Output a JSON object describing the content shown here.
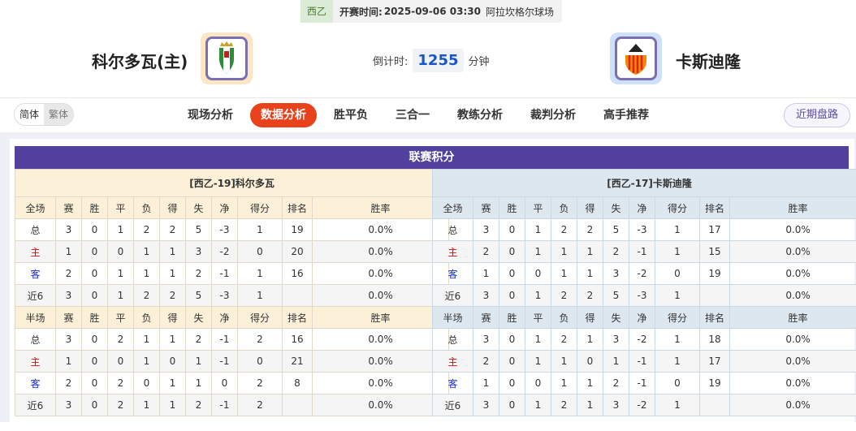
{
  "match": {
    "league": "西乙",
    "time_label": "开赛时间:",
    "time": "2025-09-06 03:30",
    "venue": "阿拉坎格尔球场"
  },
  "home": {
    "name": "科尔多瓦(主)"
  },
  "away": {
    "name": "卡斯迪隆"
  },
  "countdown": {
    "label": "倒计时:",
    "value": "1255",
    "unit": "分钟"
  },
  "lang": {
    "simplified": "简体",
    "traditional": "繁体"
  },
  "tabs": [
    {
      "label": "现场分析"
    },
    {
      "label": "数据分析",
      "active": true
    },
    {
      "label": "胜平负"
    },
    {
      "label": "三合一"
    },
    {
      "label": "教练分析"
    },
    {
      "label": "裁判分析"
    },
    {
      "label": "高手推荐"
    }
  ],
  "recent_button": "近期盘路",
  "section_title": "联赛积分",
  "columns": [
    "赛",
    "胜",
    "平",
    "负",
    "得",
    "失",
    "净",
    "得分",
    "排名",
    "胜率"
  ],
  "tables": [
    {
      "title": "[西乙-19]科尔多瓦",
      "full_label": "全场",
      "half_label": "半场",
      "full": [
        [
          "总",
          "3",
          "0",
          "1",
          "2",
          "2",
          "5",
          "-3",
          "1",
          "19",
          "0.0%"
        ],
        [
          "主",
          "1",
          "0",
          "0",
          "1",
          "1",
          "3",
          "-2",
          "0",
          "20",
          "0.0%"
        ],
        [
          "客",
          "2",
          "0",
          "1",
          "1",
          "1",
          "2",
          "-1",
          "1",
          "16",
          "0.0%"
        ],
        [
          "近6",
          "3",
          "0",
          "1",
          "2",
          "2",
          "5",
          "-3",
          "1",
          "",
          "0.0%"
        ]
      ],
      "half": [
        [
          "总",
          "3",
          "0",
          "2",
          "1",
          "1",
          "2",
          "-1",
          "2",
          "16",
          "0.0%"
        ],
        [
          "主",
          "1",
          "0",
          "0",
          "1",
          "0",
          "1",
          "-1",
          "0",
          "21",
          "0.0%"
        ],
        [
          "客",
          "2",
          "0",
          "2",
          "0",
          "1",
          "1",
          "0",
          "2",
          "8",
          "0.0%"
        ],
        [
          "近6",
          "3",
          "0",
          "2",
          "1",
          "1",
          "2",
          "-1",
          "2",
          "",
          "0.0%"
        ]
      ]
    },
    {
      "title": "[西乙-17]卡斯迪隆",
      "full_label": "全场",
      "half_label": "半场",
      "full": [
        [
          "总",
          "3",
          "0",
          "1",
          "2",
          "2",
          "5",
          "-3",
          "1",
          "17",
          "0.0%"
        ],
        [
          "主",
          "2",
          "0",
          "1",
          "1",
          "1",
          "2",
          "-1",
          "1",
          "15",
          "0.0%"
        ],
        [
          "客",
          "1",
          "0",
          "0",
          "1",
          "1",
          "3",
          "-2",
          "0",
          "19",
          "0.0%"
        ],
        [
          "近6",
          "3",
          "0",
          "1",
          "2",
          "2",
          "5",
          "-3",
          "1",
          "",
          "0.0%"
        ]
      ],
      "half": [
        [
          "总",
          "3",
          "0",
          "1",
          "2",
          "1",
          "3",
          "-2",
          "1",
          "18",
          "0.0%"
        ],
        [
          "主",
          "2",
          "0",
          "1",
          "1",
          "0",
          "1",
          "-1",
          "1",
          "17",
          "0.0%"
        ],
        [
          "客",
          "1",
          "0",
          "0",
          "1",
          "1",
          "2",
          "-1",
          "0",
          "19",
          "0.0%"
        ],
        [
          "近6",
          "3",
          "0",
          "1",
          "2",
          "1",
          "3",
          "-2",
          "1",
          "",
          "0.0%"
        ]
      ]
    }
  ],
  "colors": {
    "accent": "#e8411c",
    "section_bar": "#51419c",
    "home_header": "#fdf0d8",
    "away_header": "#dde7ef",
    "home_text": "#e00000",
    "away_text": "#1a2fd0"
  }
}
